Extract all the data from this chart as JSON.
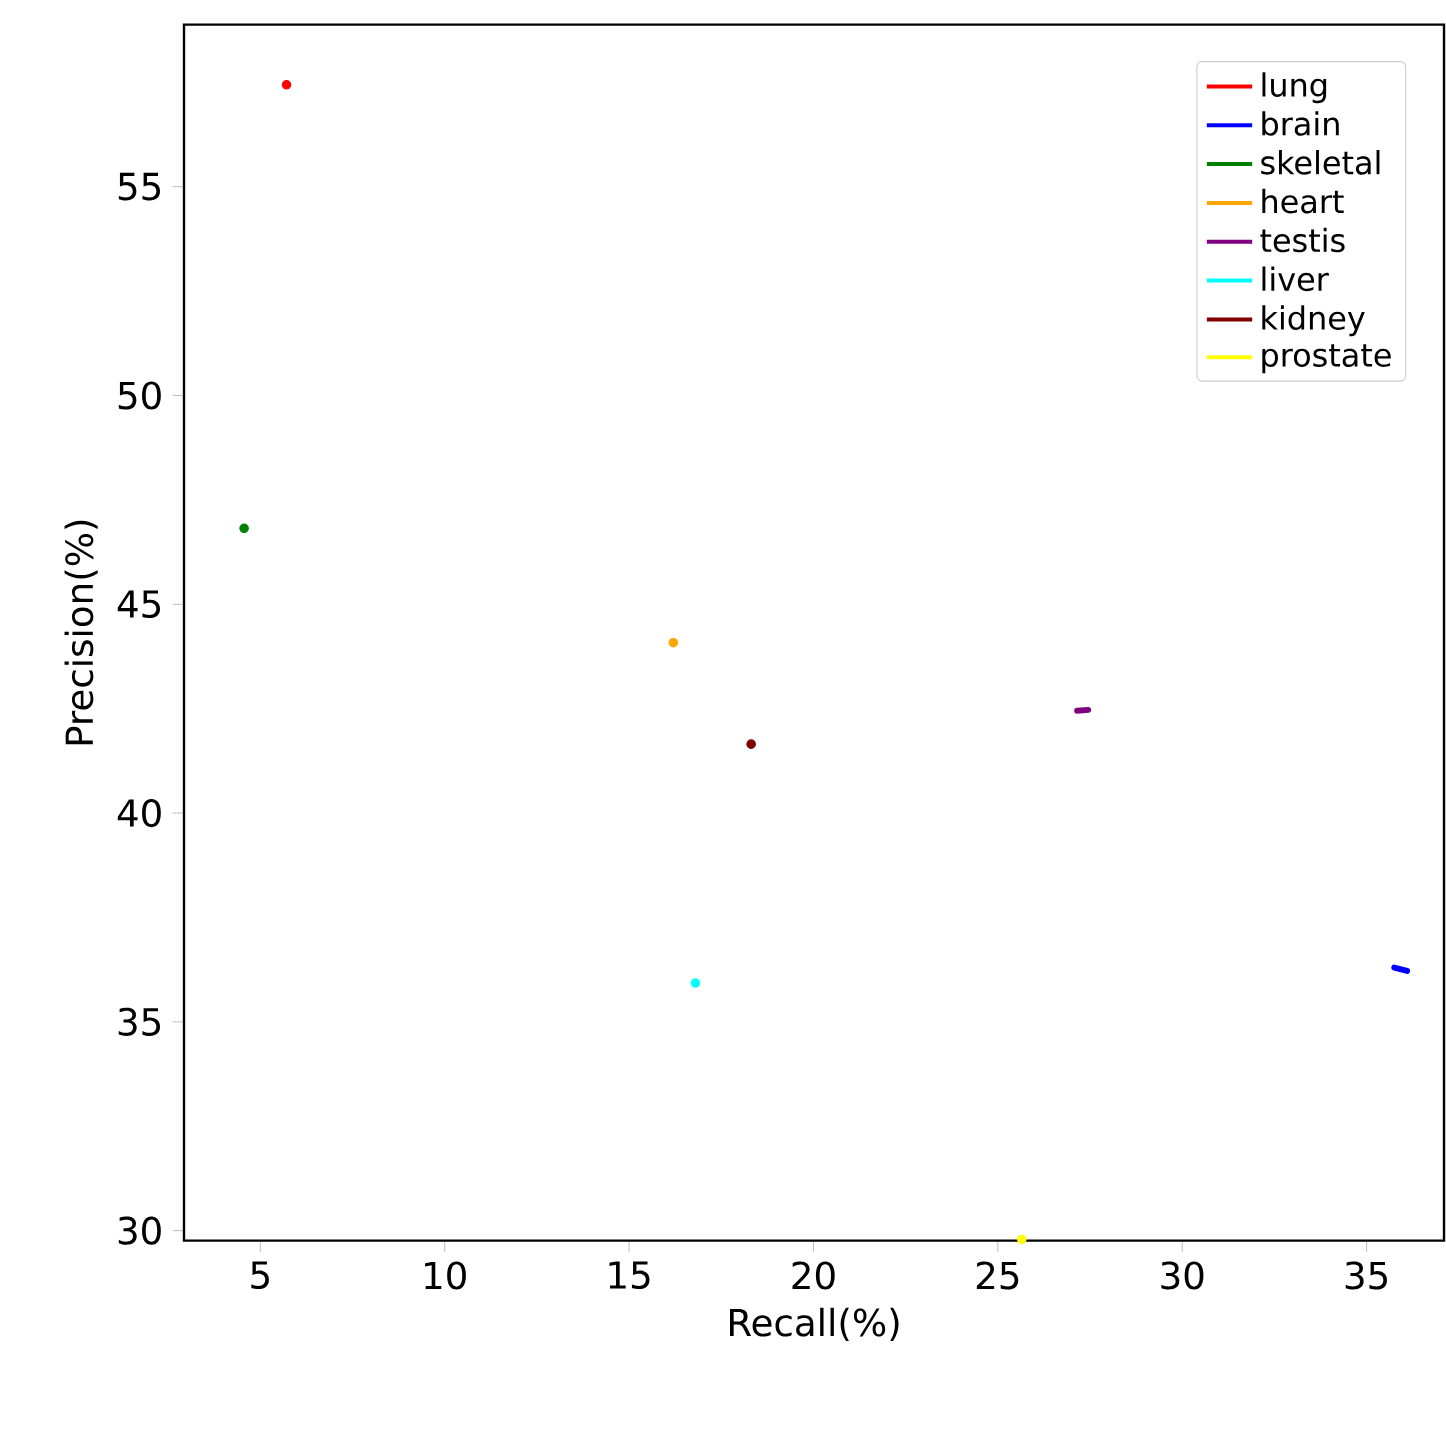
{
  "chart_data": {
    "type": "line",
    "xlabel": "Recall(%)",
    "ylabel": "Precision(%)",
    "xlim": [
      2.93,
      37.1
    ],
    "ylim": [
      29.76,
      58.88
    ],
    "xticks": [
      5,
      10,
      15,
      20,
      25,
      30,
      35
    ],
    "yticks": [
      30,
      35,
      40,
      45,
      50,
      55
    ],
    "legend": "top right",
    "series": [
      {
        "name": "lung",
        "type": "scatter",
        "color": "#ff0000",
        "x": [
          5.71
        ],
        "values": [
          57.44
        ]
      },
      {
        "name": "brain",
        "color": "#0000ff",
        "x": [
          35.75,
          36.1
        ],
        "values": [
          36.3,
          36.22
        ]
      },
      {
        "name": "skeletal",
        "type": "scatter",
        "color": "#008000",
        "x": [
          4.56
        ],
        "values": [
          46.82
        ]
      },
      {
        "name": "heart",
        "type": "scatter",
        "color": "#ffa500",
        "x": [
          16.2
        ],
        "values": [
          44.08
        ]
      },
      {
        "name": "testis",
        "color": "#800080",
        "x": [
          27.15,
          27.45
        ],
        "values": [
          42.45,
          42.47
        ]
      },
      {
        "name": "liver",
        "type": "scatter",
        "color": "#00ffff",
        "x": [
          16.8
        ],
        "values": [
          35.93
        ]
      },
      {
        "name": "kidney",
        "type": "scatter",
        "color": "#800000",
        "x": [
          18.31
        ],
        "values": [
          41.65
        ]
      },
      {
        "name": "prostate",
        "type": "scatter",
        "color": "#ffff00",
        "x": [
          25.65
        ],
        "values": [
          29.79
        ]
      }
    ]
  }
}
